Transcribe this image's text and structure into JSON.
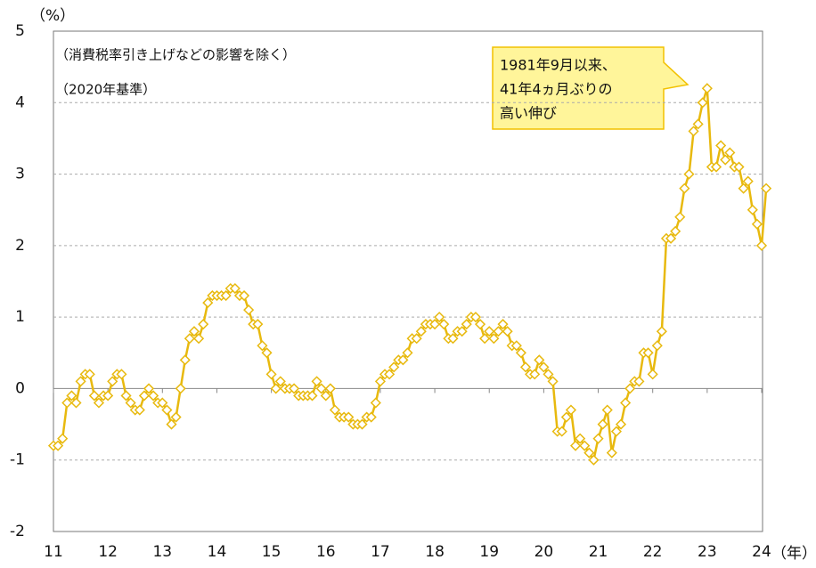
{
  "chart_data": {
    "type": "line",
    "y_unit_label": "（%）",
    "x_unit_label": "（年）",
    "notes": [
      "（消費税率引き上げなどの影響を除く）",
      "（2020年基準）"
    ],
    "annotation": [
      "1981年9月以来、",
      "41年4ヵ月ぶりの",
      "高い伸び"
    ],
    "categories": [
      "11",
      null,
      null,
      null,
      null,
      null,
      null,
      null,
      null,
      null,
      null,
      null,
      "12",
      null,
      null,
      null,
      null,
      null,
      null,
      null,
      null,
      null,
      null,
      null,
      "13",
      null,
      null,
      null,
      null,
      null,
      null,
      null,
      null,
      null,
      null,
      null,
      "14",
      null,
      null,
      null,
      null,
      null,
      null,
      null,
      null,
      null,
      null,
      null,
      "15",
      null,
      null,
      null,
      null,
      null,
      null,
      null,
      null,
      null,
      null,
      null,
      "16",
      null,
      null,
      null,
      null,
      null,
      null,
      null,
      null,
      null,
      null,
      null,
      "17",
      null,
      null,
      null,
      null,
      null,
      null,
      null,
      null,
      null,
      null,
      null,
      "18",
      null,
      null,
      null,
      null,
      null,
      null,
      null,
      null,
      null,
      null,
      null,
      "19",
      null,
      null,
      null,
      null,
      null,
      null,
      null,
      null,
      null,
      null,
      null,
      "20",
      null,
      null,
      null,
      null,
      null,
      null,
      null,
      null,
      null,
      null,
      null,
      "21",
      null,
      null,
      null,
      null,
      null,
      null,
      null,
      null,
      null,
      null,
      null,
      "22",
      null,
      null,
      null,
      null,
      null,
      null,
      null,
      null,
      null,
      null,
      null,
      "23",
      null,
      null,
      null,
      null,
      null,
      null,
      null,
      null,
      null,
      null,
      null,
      "24",
      null
    ],
    "values": [
      -0.8,
      -0.8,
      -0.7,
      -0.2,
      -0.1,
      -0.2,
      0.1,
      0.2,
      0.2,
      -0.1,
      -0.2,
      -0.1,
      -0.1,
      0.1,
      0.2,
      0.2,
      -0.1,
      -0.2,
      -0.3,
      -0.3,
      -0.1,
      0.0,
      -0.1,
      -0.2,
      -0.2,
      -0.3,
      -0.5,
      -0.4,
      0.0,
      0.4,
      0.7,
      0.8,
      0.7,
      0.9,
      1.2,
      1.3,
      1.3,
      1.3,
      1.3,
      1.4,
      1.4,
      1.3,
      1.3,
      1.1,
      0.9,
      0.9,
      0.6,
      0.5,
      0.2,
      0.0,
      0.1,
      0.0,
      0.0,
      0.0,
      -0.1,
      -0.1,
      -0.1,
      -0.1,
      0.1,
      0.0,
      -0.1,
      0.0,
      -0.3,
      -0.4,
      -0.4,
      -0.4,
      -0.5,
      -0.5,
      -0.5,
      -0.4,
      -0.4,
      -0.2,
      0.1,
      0.2,
      0.2,
      0.3,
      0.4,
      0.4,
      0.5,
      0.7,
      0.7,
      0.8,
      0.9,
      0.9,
      0.9,
      1.0,
      0.9,
      0.7,
      0.7,
      0.8,
      0.8,
      0.9,
      1.0,
      1.0,
      0.9,
      0.7,
      0.8,
      0.7,
      0.8,
      0.9,
      0.8,
      0.6,
      0.6,
      0.5,
      0.3,
      0.2,
      0.2,
      0.4,
      0.3,
      0.2,
      0.1,
      -0.6,
      -0.6,
      -0.4,
      -0.3,
      -0.8,
      -0.7,
      -0.8,
      -0.9,
      -1.0,
      -0.7,
      -0.5,
      -0.3,
      -0.9,
      -0.6,
      -0.5,
      -0.2,
      0.0,
      0.1,
      0.1,
      0.5,
      0.5,
      0.2,
      0.6,
      0.8,
      2.1,
      2.1,
      2.2,
      2.4,
      2.8,
      3.0,
      3.6,
      3.7,
      4.0,
      4.2,
      3.1,
      3.1,
      3.4,
      3.2,
      3.3,
      3.1,
      3.1,
      2.8,
      2.9,
      2.5,
      2.3,
      2.0,
      2.8
    ],
    "color": "#e8b90e",
    "ylim": [
      -2,
      5
    ],
    "yticks": [
      -2,
      -1,
      0,
      1,
      2,
      3,
      4,
      5
    ],
    "grid": true
  }
}
